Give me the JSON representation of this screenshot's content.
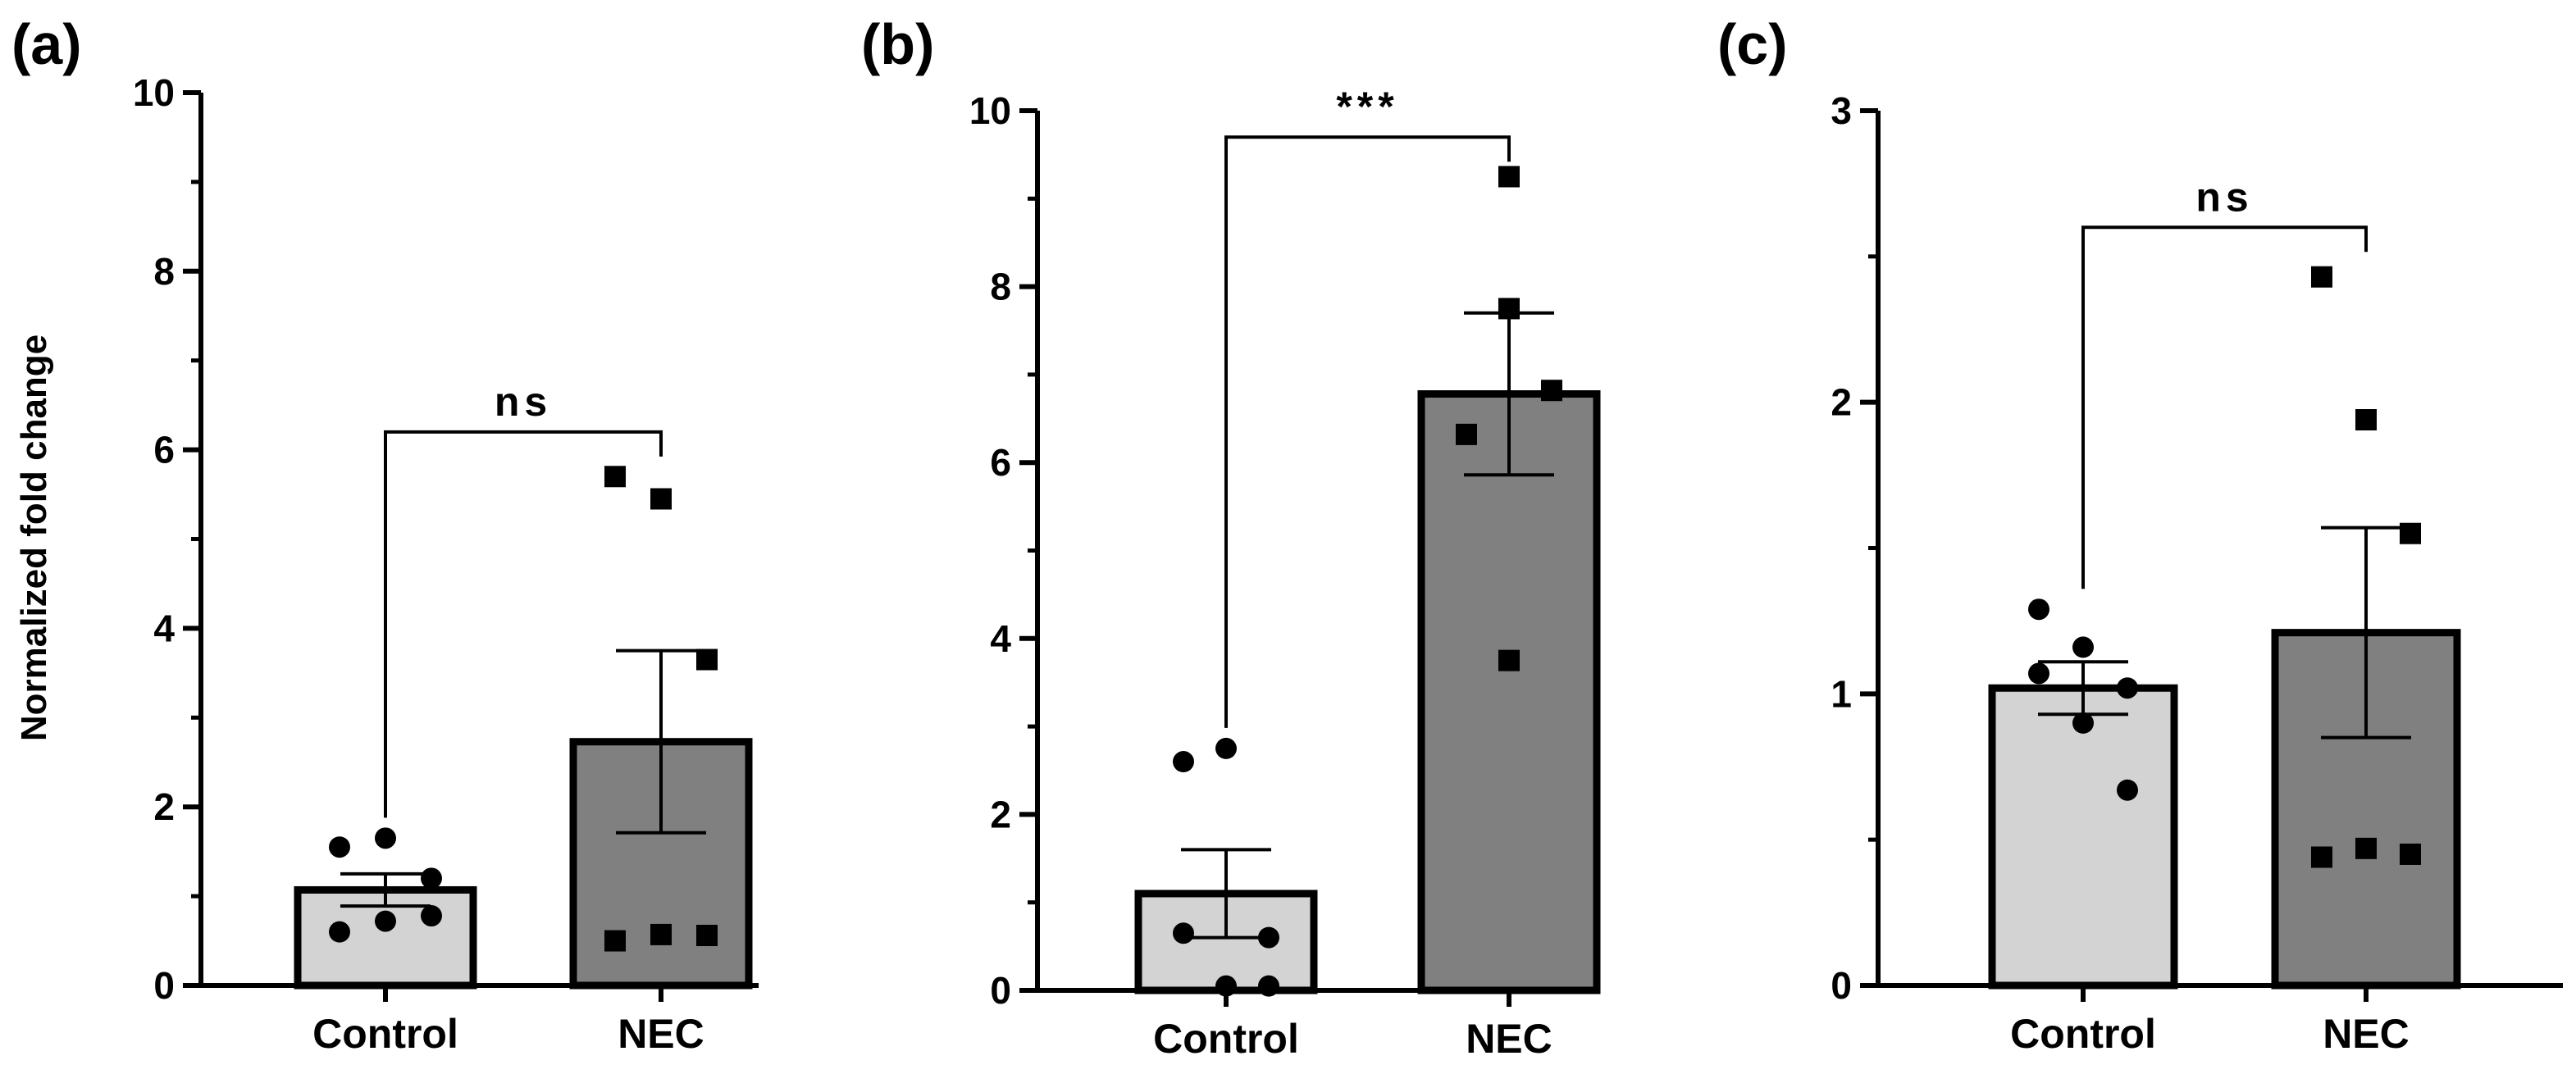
{
  "chart_data": [
    {
      "type": "bar",
      "panel_label": "(a)",
      "ylabel": "Normalized fold change",
      "xlabel": "",
      "ylim": [
        0,
        10
      ],
      "yticks": [
        0,
        2,
        4,
        6,
        8,
        10
      ],
      "ytick_labels": [
        "0",
        "2",
        "4",
        "6",
        "8",
        "10"
      ],
      "minor_ticks": true,
      "categories": [
        "Control",
        "NEC"
      ],
      "values": [
        1.07,
        2.73
      ],
      "errors": [
        0.18,
        1.02
      ],
      "bar_colors": [
        "#d3d3d3",
        "#808080"
      ],
      "points": [
        {
          "group": 0,
          "marker": "circle",
          "y": [
            1.55,
            1.65,
            1.2,
            0.6,
            0.72,
            0.78
          ]
        },
        {
          "group": 1,
          "marker": "square",
          "y": [
            5.7,
            5.45,
            3.65,
            0.5,
            0.57,
            0.56
          ]
        }
      ],
      "significance": {
        "label": "ns",
        "y": 6.2
      }
    },
    {
      "type": "bar",
      "panel_label": "(b)",
      "ylabel": "",
      "xlabel": "",
      "ylim": [
        0,
        10
      ],
      "yticks": [
        0,
        2,
        4,
        6,
        8,
        10
      ],
      "ytick_labels": [
        "0",
        "2",
        "4",
        "6",
        "8",
        "10"
      ],
      "minor_ticks": true,
      "categories": [
        "Control",
        "NEC"
      ],
      "values": [
        1.1,
        6.78
      ],
      "errors": [
        0.5,
        0.92
      ],
      "bar_colors": [
        "#d3d3d3",
        "#808080"
      ],
      "points": [
        {
          "group": 0,
          "marker": "circle",
          "y": [
            2.6,
            2.75,
            0.6,
            0.65,
            0.05,
            0.05
          ]
        },
        {
          "group": 1,
          "marker": "square",
          "y": [
            9.25,
            7.75,
            6.82,
            6.32,
            3.75
          ]
        }
      ],
      "significance": {
        "label": "***",
        "y": 9.7
      }
    },
    {
      "type": "bar",
      "panel_label": "(c)",
      "ylabel": "",
      "xlabel": "",
      "ylim": [
        0,
        3
      ],
      "yticks": [
        0,
        1,
        2,
        3
      ],
      "ytick_labels": [
        "0",
        "1",
        "2",
        "3"
      ],
      "minor_ticks": true,
      "categories": [
        "Control",
        "NEC"
      ],
      "values": [
        1.02,
        1.21
      ],
      "errors": [
        0.09,
        0.36
      ],
      "bar_colors": [
        "#d3d3d3",
        "#808080"
      ],
      "points": [
        {
          "group": 0,
          "marker": "circle",
          "y": [
            1.29,
            1.16,
            1.02,
            1.07,
            0.9,
            0.67
          ]
        },
        {
          "group": 1,
          "marker": "square",
          "y": [
            2.43,
            1.94,
            1.55,
            0.44,
            0.47,
            0.45
          ]
        }
      ],
      "significance": {
        "label": "ns",
        "y": 2.6
      }
    }
  ]
}
